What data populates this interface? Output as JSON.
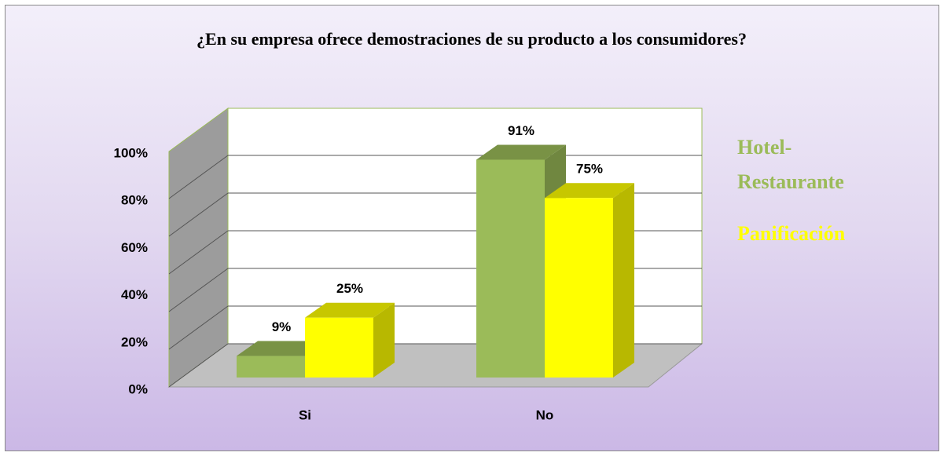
{
  "chart_data": {
    "type": "bar3d",
    "title": "¿En su empresa ofrece demostraciones  de su producto a los consumidores?",
    "categories": [
      "Si",
      "No"
    ],
    "series": [
      {
        "name": "Hotel-Restaurante",
        "color": "#9bbb59",
        "values": [
          9,
          91
        ],
        "value_labels": [
          "9%",
          "91%"
        ]
      },
      {
        "name": "Panificación",
        "color": "#ffff00",
        "values": [
          25,
          75
        ],
        "value_labels": [
          "25%",
          "75%"
        ]
      }
    ],
    "ylim": [
      0,
      100
    ],
    "yticks": [
      {
        "value": 0,
        "label": "0%"
      },
      {
        "value": 20,
        "label": "20%"
      },
      {
        "value": 40,
        "label": "40%"
      },
      {
        "value": 60,
        "label": "60%"
      },
      {
        "value": 80,
        "label": "80%"
      },
      {
        "value": 100,
        "label": "100%"
      }
    ],
    "grid": true,
    "legend": "right"
  }
}
